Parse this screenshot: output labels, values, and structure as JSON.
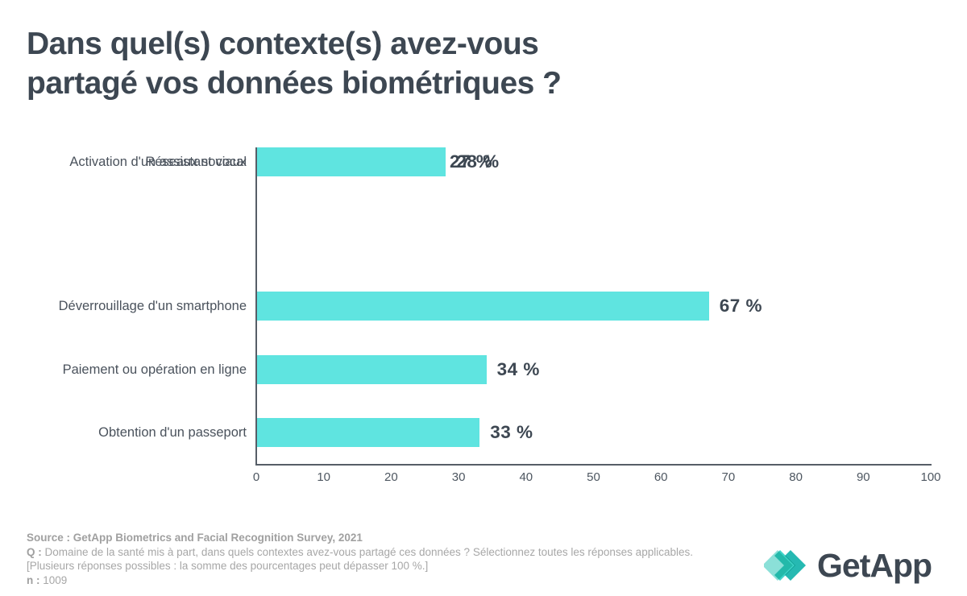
{
  "header": {
    "title_lines": [
      "Dans quel(s) contexte(s) avez-vous",
      "partagé vos données biométriques ?"
    ]
  },
  "chart_data": {
    "type": "bar",
    "orientation": "horizontal",
    "title": "Dans quel(s) contexte(s) avez-vous partagé vos données biométriques ?",
    "categories": [
      "Déverrouillage d'un smartphone",
      "Paiement ou opération en ligne",
      "Obtention d'un passeport",
      "Réseaux sociaux",
      "Activation d'un assistant vocal"
    ],
    "values": [
      67,
      34,
      33,
      28,
      27
    ],
    "value_labels": [
      "67 %",
      "34 %",
      "33 %",
      "28 %",
      "27 %"
    ],
    "xlabel": "",
    "ylabel": "",
    "xlim": [
      0,
      100
    ],
    "x_ticks": [
      "0",
      "10",
      "20",
      "30",
      "40",
      "50",
      "60",
      "70",
      "80",
      "90",
      "100"
    ],
    "grid": false,
    "legend": false,
    "bar_color": "#5FE4E0",
    "axis_color": "#565E67",
    "label_color": "#4A525C",
    "value_label_color": "#3D4752"
  },
  "footer": {
    "source": "Source : GetApp Biometrics and Facial Recognition Survey, 2021",
    "q_label": "Q :",
    "q_text": " Domaine de la santé mis à part, dans quels contextes avez-vous partagé ces données ? Sélectionnez toutes les réponses applicables. [Plusieurs réponses possibles : la somme des pourcentages peut dépasser 100 %.]",
    "n_label": "n :",
    "n_value": " 1009"
  },
  "brand": {
    "name": "GetApp",
    "icon": "getapp-diamonds-icon",
    "icon_colors": [
      "#8BE0D8",
      "#2FCFC4",
      "#14B3AB"
    ],
    "text_color": "#3D4752"
  }
}
